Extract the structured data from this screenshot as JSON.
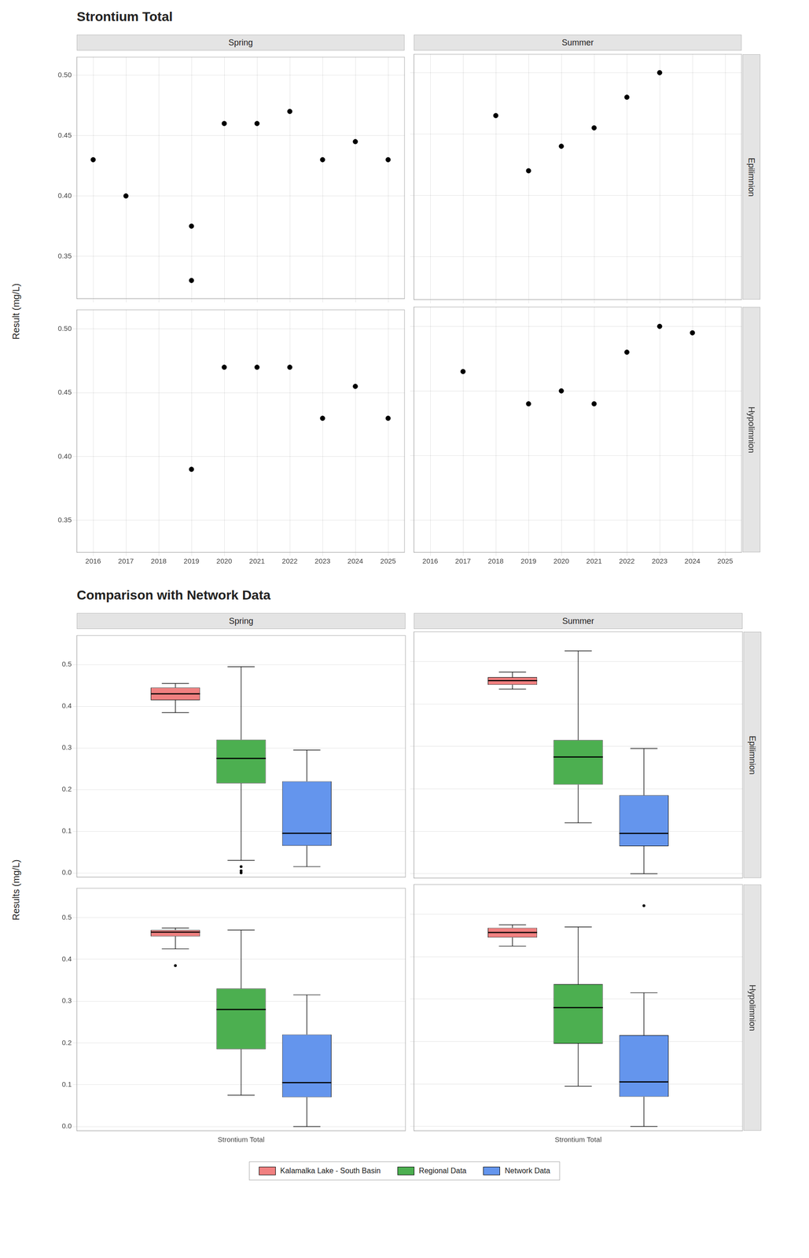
{
  "chart_data": [
    {
      "type": "scatter",
      "title": "Strontium Total",
      "y_label": "Result (mg/L)",
      "color": "#000000",
      "grid": true,
      "columns": [
        "Spring",
        "Summer"
      ],
      "rows": [
        "Epilimnion",
        "Hypolimnion"
      ],
      "xlim": [
        2015.5,
        2025.5
      ],
      "xticks": [
        2016,
        2017,
        2018,
        2019,
        2020,
        2021,
        2022,
        2023,
        2024,
        2025
      ],
      "panels": [
        {
          "column": "Spring",
          "row": "Epilimnion",
          "x": [
            2016,
            2017,
            2019,
            2019,
            2020,
            2021,
            2022,
            2023,
            2024,
            2025
          ],
          "values": [
            0.43,
            0.4,
            0.375,
            0.33,
            0.46,
            0.46,
            0.47,
            0.43,
            0.445,
            0.43
          ],
          "ylim": [
            0.315,
            0.515
          ],
          "yticks": [
            0.35,
            {
              "value": 0.4,
              "label": "0.40"
            },
            0.45,
            {
              "value": 0.5,
              "label": "0.50"
            }
          ]
        },
        {
          "column": "Summer",
          "row": "Epilimnion",
          "x": [
            2018,
            2019,
            2020,
            2021,
            2022,
            2023,
            2025
          ],
          "values": [
            0.465,
            0.42,
            0.44,
            0.455,
            0.48,
            0.5,
            null
          ],
          "ylim": [
            0.315,
            0.515
          ],
          "yticks": [
            0.35,
            {
              "value": 0.4,
              "label": "0.40"
            },
            0.45,
            {
              "value": 0.5,
              "label": "0.50"
            }
          ]
        },
        {
          "column": "Spring",
          "row": "Hypolimnion",
          "x": [
            2019,
            2020,
            2021,
            2022,
            2023,
            2024,
            2025
          ],
          "values": [
            0.39,
            0.47,
            0.47,
            0.47,
            0.43,
            0.455,
            0.43
          ],
          "ylim": [
            0.325,
            0.515
          ],
          "yticks": [
            0.35,
            {
              "value": 0.4,
              "label": "0.40"
            },
            0.45,
            {
              "value": 0.5,
              "label": "0.50"
            }
          ]
        },
        {
          "column": "Summer",
          "row": "Hypolimnion",
          "x": [
            2017,
            2019,
            2020,
            2021,
            2022,
            2023,
            2024,
            2025
          ],
          "values": [
            0.465,
            0.44,
            0.45,
            0.44,
            0.48,
            0.5,
            0.495,
            null
          ],
          "ylim": [
            0.325,
            0.515
          ],
          "yticks": [
            0.35,
            {
              "value": 0.4,
              "label": "0.40"
            },
            0.45,
            {
              "value": 0.5,
              "label": "0.50"
            }
          ]
        }
      ]
    },
    {
      "type": "box",
      "title": "Comparison with Network Data",
      "y_label": "Results (mg/L)",
      "grid": "y",
      "legend": "bottom",
      "categories": [
        "Strontium Total"
      ],
      "ylim": [
        -0.01,
        0.57
      ],
      "yticks": [
        {
          "value": 0.0,
          "label": "0.0"
        },
        0.1,
        0.2,
        0.3,
        0.4,
        0.5
      ],
      "columns": [
        "Spring",
        "Summer"
      ],
      "rows": [
        "Epilimnion",
        "Hypolimnion"
      ],
      "series": [
        {
          "name": "Kalamalka Lake - South Basin",
          "color": "#F08080"
        },
        {
          "name": "Regional Data",
          "color": "#4CAF50"
        },
        {
          "name": "Network Data",
          "color": "#6495ED"
        }
      ],
      "panels": [
        {
          "column": "Spring",
          "row": "Epilimnion",
          "boxes": [
            {
              "whisker_low": 0.385,
              "q1": 0.415,
              "median": 0.43,
              "q3": 0.445,
              "whisker_high": 0.455,
              "outliers": []
            },
            {
              "whisker_low": 0.03,
              "q1": 0.215,
              "median": 0.275,
              "q3": 0.32,
              "whisker_high": 0.495,
              "outliers": [
                0.0,
                0.005,
                0.015
              ]
            },
            {
              "whisker_low": 0.015,
              "q1": 0.065,
              "median": 0.095,
              "q3": 0.22,
              "whisker_high": 0.295,
              "outliers": []
            }
          ]
        },
        {
          "column": "Summer",
          "row": "Epilimnion",
          "boxes": [
            {
              "whisker_low": 0.435,
              "q1": 0.445,
              "median": 0.455,
              "q3": 0.463,
              "whisker_high": 0.475,
              "outliers": []
            },
            {
              "whisker_low": 0.12,
              "q1": 0.21,
              "median": 0.275,
              "q3": 0.315,
              "whisker_high": 0.525,
              "outliers": []
            },
            {
              "whisker_low": 0.0,
              "q1": 0.065,
              "median": 0.095,
              "q3": 0.185,
              "whisker_high": 0.295,
              "outliers": []
            }
          ]
        },
        {
          "column": "Spring",
          "row": "Hypolimnion",
          "boxes": [
            {
              "whisker_low": 0.425,
              "q1": 0.455,
              "median": 0.465,
              "q3": 0.47,
              "whisker_high": 0.475,
              "outliers": [
                0.385
              ]
            },
            {
              "whisker_low": 0.075,
              "q1": 0.185,
              "median": 0.28,
              "q3": 0.33,
              "whisker_high": 0.47,
              "outliers": []
            },
            {
              "whisker_low": 0.0,
              "q1": 0.07,
              "median": 0.105,
              "q3": 0.22,
              "whisker_high": 0.315,
              "outliers": []
            }
          ]
        },
        {
          "column": "Summer",
          "row": "Hypolimnion",
          "boxes": [
            {
              "whisker_low": 0.425,
              "q1": 0.445,
              "median": 0.457,
              "q3": 0.468,
              "whisker_high": 0.475,
              "outliers": []
            },
            {
              "whisker_low": 0.095,
              "q1": 0.195,
              "median": 0.28,
              "q3": 0.335,
              "whisker_high": 0.47,
              "outliers": []
            },
            {
              "whisker_low": 0.0,
              "q1": 0.07,
              "median": 0.105,
              "q3": 0.215,
              "whisker_high": 0.315,
              "outliers": [
                0.52
              ]
            }
          ]
        }
      ]
    }
  ]
}
